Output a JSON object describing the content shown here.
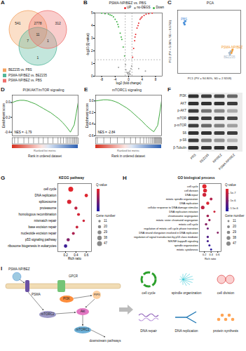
{
  "venn": {
    "panel": "A",
    "sets": [
      {
        "name": "BEZ235 vs. PBS",
        "color": "#f4a261"
      },
      {
        "name": "PSMA-NP/BEZ vs. BEZ235",
        "color": "#52b69a"
      },
      {
        "name": "PSMA-NP/BEZ vs. PBS",
        "color": "#ef6f6c"
      }
    ],
    "regions": [
      {
        "sets": [
          "BEZ235 vs. PBS"
        ],
        "count": 541
      },
      {
        "sets": [
          "BEZ235 vs. PBS",
          "PSMA-NP/BEZ vs. PBS"
        ],
        "count": 2778
      },
      {
        "sets": [
          "PSMA-NP/BEZ vs. PBS"
        ],
        "count": 312
      },
      {
        "sets": [
          "BEZ235 vs. PBS",
          "PSMA-NP/BEZ vs. BEZ235"
        ],
        "count": 7
      },
      {
        "sets": [
          "BEZ235 vs. PBS",
          "PSMA-NP/BEZ vs. BEZ235",
          "PSMA-NP/BEZ vs. PBS"
        ],
        "count": 11
      },
      {
        "sets": [
          "PSMA-NP/BEZ vs. BEZ235",
          "PSMA-NP/BEZ vs. PBS"
        ],
        "count": 1
      },
      {
        "sets": [
          "PSMA-NP/BEZ vs. BEZ235"
        ],
        "count": 1
      }
    ]
  },
  "chart_data": [
    {
      "panel": "B",
      "type": "scatter",
      "title": "PSMA-NP/BEZ vs. PBS",
      "x_label": "log2 (fold change)",
      "y_label": "-log10 (Q value)",
      "xlim": [
        -10,
        10
      ],
      "xticks": [
        -8,
        -4,
        0,
        4,
        8
      ],
      "ylim": [
        0,
        5
      ],
      "yticks": [
        0,
        1,
        2,
        3,
        4,
        5
      ],
      "threshold_lines": {
        "x": [
          -1,
          1
        ],
        "y": 1.3
      },
      "legend": "top-right",
      "series": [
        {
          "name": "UP",
          "color": "#e8262a",
          "x": [
            1.2,
            1.5,
            1.8,
            2.1,
            2.5,
            3.0,
            3.4,
            4.0,
            4.6,
            5.2,
            6.0,
            7.0,
            2.8,
            1.9,
            3.7
          ],
          "y": [
            1.5,
            2.2,
            2.8,
            3.3,
            3.8,
            4.2,
            4.5,
            4.7,
            4.8,
            4.9,
            4.95,
            4.98,
            4.0,
            3.1,
            4.6
          ]
        },
        {
          "name": "no-DEGS",
          "color": "#9e9e9e",
          "x": [
            -0.8,
            -0.5,
            -0.3,
            0,
            0.2,
            0.4,
            0.7,
            0.9,
            -0.9,
            0.1,
            -0.2,
            0.5,
            3,
            -3,
            5
          ],
          "y": [
            0.5,
            0.3,
            0.2,
            0.1,
            0.2,
            0.4,
            0.6,
            0.8,
            0.9,
            0.3,
            0.25,
            0.15,
            0.6,
            0.7,
            0.4
          ]
        },
        {
          "name": "Down",
          "color": "#3cb043",
          "x": [
            -1.2,
            -1.6,
            -2.0,
            -2.5,
            -3.0,
            -3.5,
            -4.0,
            -4.5,
            -5.0,
            -6.0,
            -7.0,
            -8.0,
            -2.2,
            -3.2,
            -5.5
          ],
          "y": [
            1.6,
            2.3,
            2.9,
            3.4,
            3.9,
            4.3,
            4.5,
            4.7,
            4.8,
            4.9,
            4.95,
            4.98,
            3.1,
            4.1,
            4.85
          ]
        }
      ]
    },
    {
      "panel": "C",
      "type": "scatter",
      "title": "PCA",
      "x_label": "PC1 (PV = 94.80%, SD = 2.9209)",
      "y_label": "PC2 (PV = 5.08%, SD = 0.6761)",
      "tick_labels": false,
      "xlim": [
        -3,
        2
      ],
      "ylim": [
        -1,
        1
      ],
      "series": [
        {
          "name": "PBS",
          "color": "#4a90d9",
          "x": [
            -2.5,
            -2.4,
            -2.45
          ],
          "y": [
            0.6,
            0.65,
            0.55
          ]
        },
        {
          "name": "PSMA-NP/BEZ",
          "color": "#f39c32",
          "x": [
            1.3,
            1.35,
            1.25
          ],
          "y": [
            -0.3,
            -0.25,
            -0.35
          ]
        },
        {
          "name": "BEZ235",
          "color": "#a9b8c8",
          "x": [
            1.1,
            1.15,
            1.2
          ],
          "y": [
            -0.35,
            -0.4,
            -0.3
          ]
        }
      ]
    },
    {
      "panel": "D",
      "type": "line",
      "title": "PI3K/AKT/mTOR signaling",
      "annotation": "NES = -1.79",
      "y_label": "Enrichment score",
      "x_label": "Rank in ordered dataset",
      "metric_label": "Ranked list metric",
      "tick_labels": "y",
      "xlim": [
        0,
        17000
      ],
      "ylim": [
        -0.45,
        0.1
      ],
      "yticks": [
        {
          "value": 0,
          "label": "0.0"
        },
        -0.2,
        -0.4
      ],
      "color": "#2ca02c",
      "x": [
        0,
        1000,
        2000,
        3000,
        4000,
        5000,
        6000,
        7000,
        8000,
        9000,
        10000,
        11000,
        12000,
        13000,
        14000,
        15000,
        16000,
        16500,
        17000
      ],
      "values": [
        0,
        0.02,
        0.03,
        0.03,
        0.02,
        0,
        -0.02,
        -0.05,
        -0.08,
        -0.11,
        -0.14,
        -0.18,
        -0.22,
        -0.27,
        -0.33,
        -0.4,
        -0.3,
        -0.15,
        0
      ],
      "hits": [
        600,
        1500,
        3000,
        4200,
        5500,
        6800,
        8000,
        9200,
        10500,
        11800,
        12500,
        13200,
        13900,
        14300,
        14700,
        15100,
        15500,
        15800,
        16100,
        16400,
        16700
      ]
    },
    {
      "panel": "E",
      "type": "line",
      "title": "mTORC1 signaling",
      "annotation": "NES = -2.84",
      "y_label": "Enrichment score",
      "x_label": "Rank in ordered dataset",
      "metric_label": "Ranked list metric",
      "tick_labels": "y",
      "xlim": [
        0,
        17000
      ],
      "ylim": [
        -0.6,
        0.1
      ],
      "yticks": [
        {
          "value": 0,
          "label": "0.0"
        },
        -0.2,
        -0.4,
        -0.6
      ],
      "color": "#2ca02c",
      "x": [
        0,
        1000,
        2000,
        3000,
        4000,
        5000,
        6000,
        7000,
        8000,
        9000,
        10000,
        11000,
        12000,
        13000,
        14000,
        15000,
        16000,
        16500,
        17000
      ],
      "values": [
        0,
        0.01,
        0.02,
        0.02,
        0.01,
        -0.01,
        -0.04,
        -0.08,
        -0.12,
        -0.17,
        -0.23,
        -0.29,
        -0.35,
        -0.42,
        -0.48,
        -0.53,
        -0.42,
        -0.22,
        0
      ],
      "hits": [
        400,
        2100,
        3800,
        5600,
        7400,
        9000,
        10300,
        11500,
        12400,
        13100,
        13700,
        14200,
        14600,
        14900,
        15200,
        15400,
        15600,
        15800,
        16000,
        16200,
        16400,
        16600,
        16800
      ]
    },
    {
      "panel": "G",
      "type": "dot",
      "title": "KEGG pathway",
      "x_label": "Rich ratio",
      "xlim": [
        0.05,
        0.7
      ],
      "xticks": [
        0.2,
        0.4,
        0.6
      ],
      "categories": [
        "cell cycle",
        "DNA replication",
        "spliceosome",
        "proteasome",
        "homologous recombination",
        "mismatch repair",
        "base excision repair",
        "nucleotide excision repair",
        "p53 signaling pathway",
        "ribosome biogenesis in eukaryotes"
      ],
      "values": [
        0.3,
        0.6,
        0.27,
        0.4,
        0.45,
        0.55,
        0.42,
        0.35,
        0.25,
        0.2
      ],
      "gene_number": [
        47,
        22,
        35,
        18,
        17,
        12,
        14,
        16,
        20,
        22
      ],
      "q_value": [
        0.0001,
        0.0002,
        0.0003,
        0.0008,
        0.0004,
        0.0005,
        0.0006,
        0.0012,
        0.002,
        0.0034
      ],
      "color_bar": {
        "label": "Q-value",
        "range": [
          0,
          0.004
        ],
        "colors": [
          "#e8262a",
          "#1c1ca8"
        ]
      },
      "size_legend": {
        "label": "Gene number",
        "values": [
          11,
          20,
          29,
          38,
          47
        ]
      }
    },
    {
      "panel": "H",
      "type": "dot",
      "title": "GO biological process",
      "x_label": "Rich ratio",
      "xlim": [
        0.05,
        0.7
      ],
      "xticks": [
        0.2,
        0.4,
        0.6
      ],
      "categories": [
        "cell cycle",
        "cell division",
        "DNA repair",
        "mitotic spindle organization",
        "DNA replication",
        "cellular response to DNA damage stimulus",
        "DNA replication initiation",
        "chromosome segregation",
        "mitotic sister chromatid segregation",
        "mitotic cell cycle",
        "regulation of mitotic cell cycle phase transition",
        "DNA strand elongation involved in DNA replication",
        "regulation of signal transduction by p53 class mediator",
        "NIK/NF-kappaB signaling",
        "spindle organization",
        "mitotic cytokinesis"
      ],
      "values": [
        0.2,
        0.22,
        0.2,
        0.4,
        0.3,
        0.15,
        0.5,
        0.3,
        0.35,
        0.25,
        0.3,
        0.6,
        0.3,
        0.3,
        0.35,
        0.4
      ],
      "gene_number": [
        47,
        40,
        38,
        20,
        25,
        35,
        12,
        18,
        14,
        16,
        12,
        11,
        14,
        13,
        12,
        11
      ],
      "q_value": [
        2.5e-07,
        3e-07,
        4e-07,
        6e-07,
        3e-07,
        5e-07,
        4e-07,
        7e-07,
        8e-07,
        9e-07,
        1.1e-06,
        9e-07,
        1.3e-06,
        1.4e-06,
        1.5e-06,
        1.6e-06
      ],
      "color_bar": {
        "label": "Q-value",
        "range": [
          2e-07,
          1.7e-06
        ],
        "colors": [
          "#e8262a",
          "#1c1ca8"
        ],
        "ticks": [
          {
            "value": 5e-07,
            "label": "5e-7"
          },
          {
            "value": 1e-06,
            "label": "1e-6"
          },
          {
            "value": 1.5e-06,
            "label": "1.5e-6"
          }
        ]
      },
      "size_legend": {
        "label": "Gene number",
        "values": [
          11,
          20,
          29,
          38,
          47
        ]
      }
    }
  ],
  "western_blot": {
    "panel": "F",
    "rows": [
      "PI3K",
      "AKT",
      "p-AKT",
      "mTOR",
      "p-mTOR",
      "S6",
      "p-S6",
      "β-Tubulin"
    ],
    "columns": [
      "PBS",
      "BEZ235",
      "NP/BEZ",
      "PSMA-NP/BEZ"
    ]
  },
  "schematic": {
    "panel": "I",
    "labels": {
      "drug": "PSMA-NP/BEZ",
      "receptor": "PSMA",
      "gpcr": "GPCR",
      "pi3k": "PI3K",
      "pip3": "PIP3",
      "akt": "Akt",
      "mtorc2": "mTORC2",
      "mtorc1": "mTORC1",
      "downstream": "downstream pathways"
    },
    "outcomes": [
      "cell cycle",
      "spindle organization",
      "cell division",
      "DNA repair",
      "DNA replication",
      "protein synthesis"
    ]
  }
}
